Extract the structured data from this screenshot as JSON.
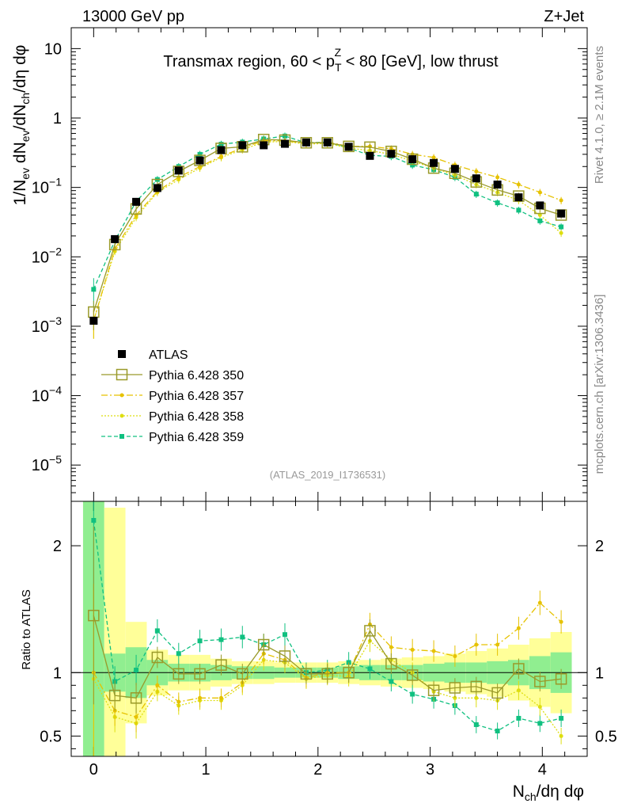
{
  "header": {
    "left": "13000 GeV pp",
    "right": "Z+Jet"
  },
  "side": {
    "rivet": "Rivet 4.1.0, ≥ 2.1M events",
    "mcplots": "mcplots.cern.ch [arXiv:1306.3436]"
  },
  "colors": {
    "atlas": "#000000",
    "p350": "#9a9a2a",
    "p357": "#e6c200",
    "p358": "#dede10",
    "p359": "#10c080",
    "band_green": "#90ee90",
    "band_yellow": "#ffff99"
  },
  "chart_data": [
    {
      "type": "line",
      "panel": "main",
      "title": "Transmax region, 60 < p_T^Z < 80 [GeV], low thrust",
      "title_parts": {
        "pre": "Transmax region, 60 < p",
        "sub": "T",
        "sup": "Z",
        "post": " < 80 [GeV], low thrust"
      },
      "ylabel": "1/N_ev dN_ev/dN_ch/dη dφ",
      "ylabel_parts": {
        "a": "1/N",
        "a_sub": "ev",
        "b": " dN",
        "b_sub": "ev",
        "c": "/dN",
        "c_sub": "ch",
        "d": "/dη dφ"
      },
      "yscale": "log",
      "ylim": [
        3e-06,
        20
      ],
      "yticks": [
        {
          "v": 1e-05,
          "base": "10",
          "exp": "−5"
        },
        {
          "v": 0.0001,
          "base": "10",
          "exp": "−4"
        },
        {
          "v": 0.001,
          "base": "10",
          "exp": "−3"
        },
        {
          "v": 0.01,
          "base": "10",
          "exp": "−2"
        },
        {
          "v": 0.1,
          "base": "10",
          "exp": "−1"
        },
        {
          "v": 1,
          "base": "1",
          "exp": ""
        },
        {
          "v": 10,
          "base": "10",
          "exp": ""
        }
      ],
      "xlim": [
        -0.2,
        4.4
      ],
      "watermark": "(ATLAS_2019_I1736531)",
      "x": [
        0.0,
        0.189,
        0.379,
        0.568,
        0.758,
        0.947,
        1.137,
        1.326,
        1.516,
        1.705,
        1.895,
        2.084,
        2.274,
        2.463,
        2.653,
        2.842,
        3.032,
        3.221,
        3.411,
        3.6,
        3.789,
        3.979,
        4.168
      ],
      "legend_position": "lower-left",
      "series": [
        {
          "name": "ATLAS",
          "key": "atlas",
          "values": [
            0.0012,
            0.018,
            0.062,
            0.098,
            0.175,
            0.245,
            0.345,
            0.405,
            0.405,
            0.425,
            0.445,
            0.445,
            0.385,
            0.285,
            0.305,
            0.255,
            0.225,
            0.185,
            0.135,
            0.11,
            0.072,
            0.055,
            0.042
          ]
        },
        {
          "name": "Pythia 6.428 350",
          "key": "p350",
          "values": [
            0.0016,
            0.015,
            0.049,
            0.11,
            0.17,
            0.245,
            0.365,
            0.385,
            0.49,
            0.48,
            0.44,
            0.44,
            0.39,
            0.38,
            0.33,
            0.255,
            0.19,
            0.16,
            0.12,
            0.092,
            0.075,
            0.05,
            0.04
          ]
        },
        {
          "name": "Pythia 6.428 357",
          "key": "p357",
          "values": [
            0.0012,
            0.013,
            0.04,
            0.088,
            0.14,
            0.2,
            0.28,
            0.37,
            0.47,
            0.47,
            0.43,
            0.45,
            0.39,
            0.39,
            0.36,
            0.3,
            0.27,
            0.21,
            0.17,
            0.14,
            0.11,
            0.085,
            0.065
          ]
        },
        {
          "name": "Pythia 6.428 358",
          "key": "p358",
          "values": [
            0.0012,
            0.012,
            0.037,
            0.085,
            0.13,
            0.19,
            0.27,
            0.35,
            0.45,
            0.46,
            0.42,
            0.43,
            0.37,
            0.34,
            0.3,
            0.24,
            0.19,
            0.15,
            0.11,
            0.085,
            0.065,
            0.04,
            0.022
          ]
        },
        {
          "name": "Pythia 6.428 359",
          "key": "p359",
          "values": [
            0.0034,
            0.017,
            0.063,
            0.13,
            0.2,
            0.3,
            0.42,
            0.45,
            0.5,
            0.55,
            0.44,
            0.45,
            0.37,
            0.29,
            0.28,
            0.21,
            0.18,
            0.14,
            0.08,
            0.06,
            0.047,
            0.033,
            0.027
          ]
        }
      ]
    },
    {
      "type": "line",
      "panel": "ratio",
      "ylabel": "Ratio to ATLAS",
      "ylim": [
        0.34,
        2.35
      ],
      "yticks": [
        0.5,
        1,
        2
      ],
      "xlabel": "N_ch/dη dφ",
      "xlabel_parts": {
        "a": "N",
        "a_sub": "ch",
        "b": "/dη dφ"
      },
      "xlim": [
        -0.2,
        4.4
      ],
      "xticks": [
        0,
        1,
        2,
        3,
        4
      ],
      "x": [
        0.0,
        0.189,
        0.379,
        0.568,
        0.758,
        0.947,
        1.137,
        1.326,
        1.516,
        1.705,
        1.895,
        2.084,
        2.274,
        2.463,
        2.653,
        2.842,
        3.032,
        3.221,
        3.411,
        3.6,
        3.789,
        3.979,
        4.168
      ],
      "band_inner": [
        1.65,
        0.15,
        0.2,
        0.1,
        0.07,
        0.07,
        0.06,
        0.05,
        0.05,
        0.04,
        0.04,
        0.04,
        0.05,
        0.06,
        0.06,
        0.06,
        0.07,
        0.08,
        0.08,
        0.09,
        0.1,
        0.13,
        0.16
      ],
      "band_outer": [
        1.65,
        1.3,
        0.4,
        0.18,
        0.14,
        0.14,
        0.11,
        0.09,
        0.09,
        0.08,
        0.08,
        0.08,
        0.09,
        0.1,
        0.11,
        0.12,
        0.13,
        0.15,
        0.17,
        0.19,
        0.22,
        0.27,
        0.32
      ],
      "series": [
        {
          "name": "Pythia 6.428 350",
          "key": "p350",
          "values": [
            1.45,
            0.82,
            0.8,
            1.12,
            0.99,
            0.99,
            1.06,
            0.99,
            1.22,
            1.13,
            0.99,
            0.99,
            1.0,
            1.33,
            1.07,
            0.98,
            0.86,
            0.88,
            0.89,
            0.84,
            1.03,
            0.93,
            0.95
          ]
        },
        {
          "name": "Pythia 6.428 357",
          "key": "p357",
          "values": [
            1.0,
            0.7,
            0.65,
            0.9,
            0.77,
            0.8,
            0.8,
            0.92,
            1.15,
            1.1,
            0.96,
            1.0,
            1.0,
            1.38,
            1.2,
            1.18,
            1.17,
            1.13,
            1.22,
            1.22,
            1.35,
            1.55,
            1.4
          ]
        },
        {
          "name": "Pythia 6.428 358",
          "key": "p358",
          "values": [
            0.95,
            0.65,
            0.6,
            0.85,
            0.74,
            0.78,
            0.78,
            0.9,
            1.1,
            1.08,
            0.95,
            0.98,
            0.97,
            1.25,
            1.1,
            1.0,
            0.85,
            0.8,
            0.8,
            0.78,
            0.86,
            0.73,
            0.5
          ]
        },
        {
          "name": "Pythia 6.428 359",
          "key": "p359",
          "values": [
            2.2,
            0.93,
            1.02,
            1.33,
            1.15,
            1.25,
            1.26,
            1.28,
            1.22,
            1.3,
            1.0,
            1.02,
            1.08,
            1.03,
            0.93,
            0.83,
            0.79,
            0.74,
            0.59,
            0.54,
            0.64,
            0.6,
            0.64
          ]
        }
      ]
    }
  ]
}
